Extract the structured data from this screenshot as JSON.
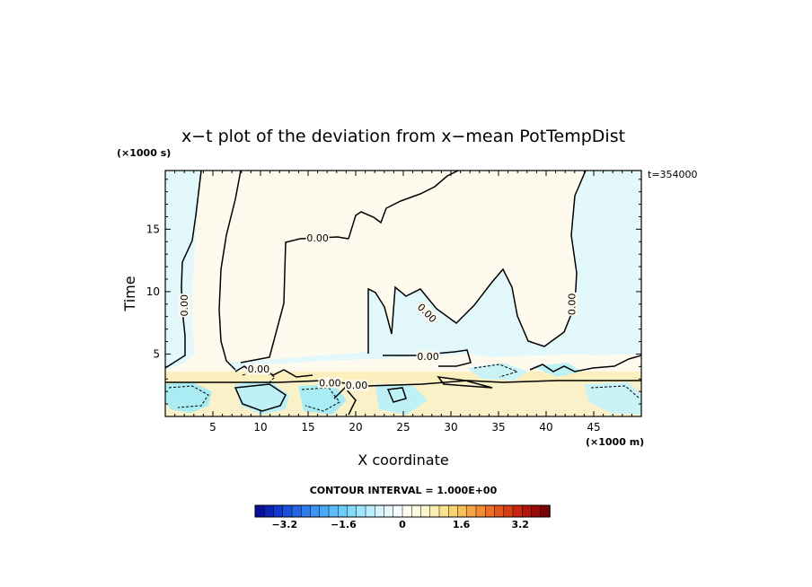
{
  "chart_data": {
    "type": "heatmap",
    "title": "x−t plot of the deviation from x−mean PotTempDist",
    "xlabel": "X coordinate",
    "ylabel": "Time",
    "x_units": "(×1000 m)",
    "y_units": "(×1000 s)",
    "time_stamp": "t=354000",
    "xlim": [
      0,
      50
    ],
    "ylim": [
      0,
      19.7
    ],
    "x_ticks": [
      5,
      10,
      15,
      20,
      25,
      30,
      35,
      40,
      45
    ],
    "y_ticks": [
      5,
      10,
      15
    ],
    "contour_interval_text": "CONTOUR INTERVAL = 1.000E+00",
    "contour_labels": [
      {
        "text": "0.00",
        "x": 16,
        "y": 14.3,
        "angle": 0
      },
      {
        "text": "0.00",
        "x": 2,
        "y": 8.9,
        "angle": -90
      },
      {
        "text": "0.00",
        "x": 27.6,
        "y": 4.8,
        "angle": 0
      },
      {
        "text": "0.00",
        "x": 27.5,
        "y": 8.3,
        "angle": 45
      },
      {
        "text": "0.00",
        "x": 42.7,
        "y": 9.0,
        "angle": -90
      },
      {
        "text": "0.00",
        "x": 17.3,
        "y": 2.7,
        "angle": 0
      },
      {
        "text": "0.00",
        "x": 20.1,
        "y": 2.5,
        "angle": 0
      },
      {
        "text": "0.00",
        "x": 9.8,
        "y": 3.8,
        "angle": 0
      }
    ],
    "colorbar": {
      "min": -4,
      "max": 4,
      "tick_labels": [
        "−3.2",
        "−1.6",
        "0",
        "1.6",
        "3.2"
      ],
      "tick_values": [
        -3.2,
        -1.6,
        0,
        1.6,
        3.2
      ],
      "colors": [
        "#0a0f9a",
        "#0c23b5",
        "#1238cc",
        "#1a50dc",
        "#2466e6",
        "#2f7dee",
        "#3b93f3",
        "#4aa8f6",
        "#5bbcf9",
        "#6ecdfb",
        "#85dbfc",
        "#a0e6fd",
        "#bbeffd",
        "#d3f6fd",
        "#e6fafd",
        "#f3fdfe",
        "#fdfdf3",
        "#fdfbe4",
        "#fdf6cc",
        "#fceeae",
        "#fbe290",
        "#f9d274",
        "#f7be5a",
        "#f4a644",
        "#f08c33",
        "#eb7026",
        "#e3551c",
        "#d83c15",
        "#c9250f",
        "#b4140b",
        "#9a0a08",
        "#7a0405"
      ]
    },
    "regions": [
      {
        "name": "cool upper background",
        "sign": "negative",
        "color": "#e3f8fb"
      },
      {
        "name": "warm central tongue",
        "sign": "positive",
        "color": "#fefbee"
      },
      {
        "name": "cool right lobe",
        "sign": "negative",
        "color": "#e3f8fb"
      },
      {
        "name": "warm bottom layer",
        "sign": "positive",
        "color": "#faf1c8"
      },
      {
        "name": "cool bottom blobs",
        "sign": "negative",
        "color": "#a9ecf3"
      }
    ]
  }
}
